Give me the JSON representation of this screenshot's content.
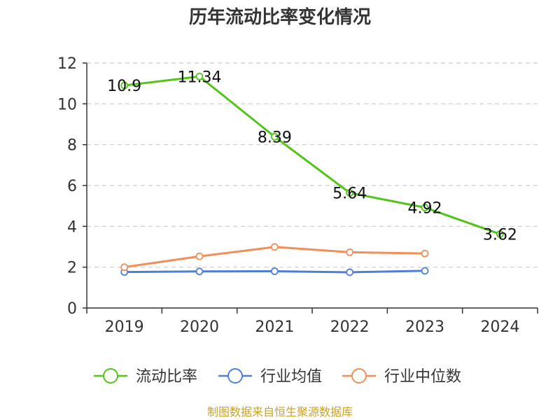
{
  "chart_data": {
    "type": "line",
    "title": "历年流动比率变化情况",
    "categories": [
      "2019",
      "2020",
      "2021",
      "2022",
      "2023",
      "2024"
    ],
    "y_ticks": [
      "0",
      "2",
      "4",
      "6",
      "8",
      "10",
      "12"
    ],
    "ylim": [
      0,
      12
    ],
    "grid": true,
    "legend_position": "bottom",
    "series": [
      {
        "name": "流动比率",
        "color": "#52c41a",
        "values": [
          10.9,
          11.34,
          8.39,
          5.64,
          4.92,
          3.62
        ],
        "labels": [
          "10.9",
          "11.34",
          "8.39",
          "5.64",
          "4.92",
          "3.62"
        ],
        "show_labels": true
      },
      {
        "name": "行业均值",
        "color": "#4f7fd6",
        "values": [
          1.76,
          1.79,
          1.8,
          1.75,
          1.82,
          null
        ],
        "show_labels": false
      },
      {
        "name": "行业中位数",
        "color": "#f28e58",
        "values": [
          2.0,
          2.53,
          2.99,
          2.73,
          2.67,
          null
        ],
        "show_labels": false
      }
    ]
  },
  "footer": "制图数据来自恒生聚源数据库"
}
